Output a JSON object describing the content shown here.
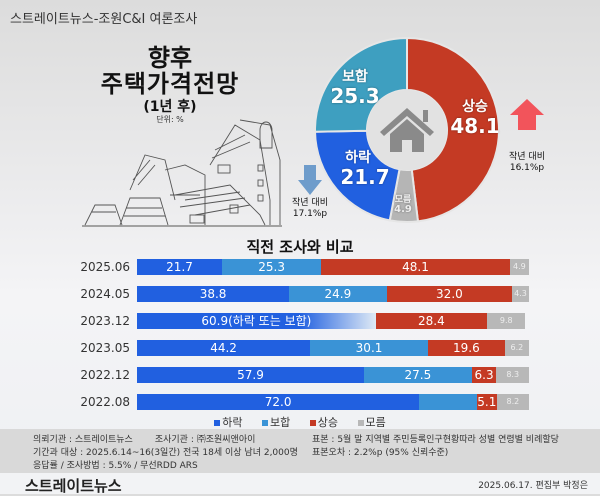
{
  "header": {
    "source": "스트레이트뉴스-조원C&I 여론조사",
    "title_line1": "향후",
    "title_line2": "주택가격전망",
    "title_line3": "(1년 후)",
    "unit": "단위: %"
  },
  "chart_data": [
    {
      "type": "pie",
      "subtype": "donut",
      "categories": [
        "상승",
        "모름",
        "하락",
        "보합"
      ],
      "values": [
        48.1,
        4.9,
        21.7,
        25.3
      ],
      "colors": [
        "#c43a24",
        "#b5b5b5",
        "#2160e0",
        "#3e9fc0"
      ],
      "annotations": [
        {
          "category": "상승",
          "direction": "up",
          "text1": "작년 대비",
          "text2": "16.1%p",
          "color": "#f2545b"
        },
        {
          "category": "하락",
          "direction": "down",
          "text1": "작년 대비",
          "text2": "17.1%p",
          "color": "#6e9ccb"
        }
      ]
    },
    {
      "type": "bar",
      "orientation": "horizontal",
      "stacked": true,
      "title": "직전 조사와 비교",
      "categories": [
        "2025.06",
        "2024.05",
        "2023.12",
        "2023.05",
        "2022.12",
        "2022.08"
      ],
      "series": [
        {
          "name": "하락",
          "color": "#2160e0",
          "values": [
            21.7,
            38.8,
            null,
            44.2,
            57.9,
            72.0
          ]
        },
        {
          "name": "보합",
          "color": "#3a93d6",
          "values": [
            25.3,
            24.9,
            null,
            30.1,
            27.5,
            14.7
          ]
        },
        {
          "name": "상승",
          "color": "#c43a24",
          "values": [
            48.1,
            32.0,
            28.4,
            19.6,
            6.3,
            5.1
          ]
        },
        {
          "name": "모름",
          "color": "#b8b8b8",
          "values": [
            4.9,
            4.3,
            9.8,
            6.2,
            8.3,
            8.2
          ]
        }
      ],
      "combined": {
        "category": "2023.12",
        "value": 60.9,
        "label": "60.9(하락 또는 보합)"
      },
      "unlabeled": [
        {
          "category": "2022.08",
          "series": "보합"
        }
      ],
      "legend": "bottom",
      "xlim": [
        0,
        100
      ]
    }
  ],
  "footer": {
    "client": "의뢰기관 : 스트레이트뉴스",
    "agency": "조사기관 : ㈜조원씨앤아이",
    "period": "기간과 대상 : 2025.6.14~16(3일간)  전국 18세 이상 남녀 2,000명",
    "method": "응답률 / 조사방법 : 5.5% / 무선RDD ARS",
    "sample": "표본 : 5월 말 지역별 주민등록인구현황따라 성별 연령별 비례할당",
    "error": "표본오차 : 2.2%p (95% 신뢰수준)",
    "logo": "스트레이트뉴스",
    "date": "2025.06.17. 편집부 박정은"
  }
}
